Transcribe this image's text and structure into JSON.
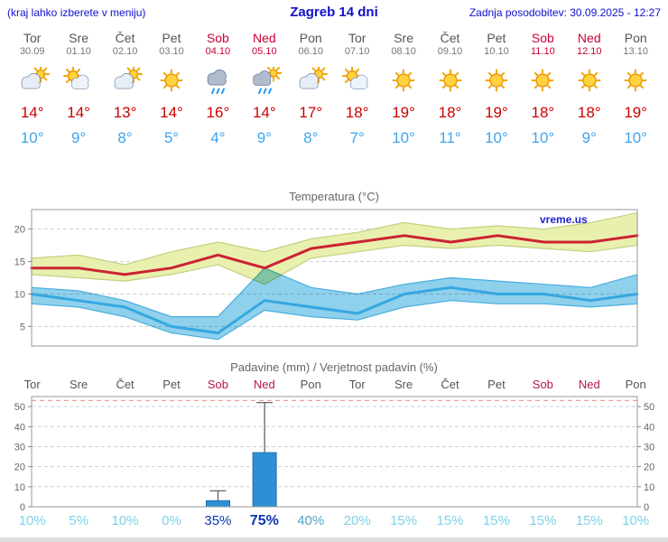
{
  "header": {
    "left": "(kraj lahko izberete v meniju)",
    "title": "Zagreb 14 dni",
    "right": "Zadnja posodobitev: 30.09.2025 - 12:27"
  },
  "watermark": "vreme.us",
  "days": [
    {
      "name": "Tor",
      "date": "30.09",
      "weekend": false,
      "icon": "cloudy-sun",
      "tmax": "14°",
      "tmin": "10°"
    },
    {
      "name": "Sre",
      "date": "01.10",
      "weekend": false,
      "icon": "partly",
      "tmax": "14°",
      "tmin": "9°"
    },
    {
      "name": "Čet",
      "date": "02.10",
      "weekend": false,
      "icon": "cloudy-sun",
      "tmax": "13°",
      "tmin": "8°"
    },
    {
      "name": "Pet",
      "date": "03.10",
      "weekend": false,
      "icon": "sun",
      "tmax": "14°",
      "tmin": "5°"
    },
    {
      "name": "Sob",
      "date": "04.10",
      "weekend": true,
      "icon": "rain",
      "tmax": "16°",
      "tmin": "4°"
    },
    {
      "name": "Ned",
      "date": "05.10",
      "weekend": true,
      "icon": "rain-sun",
      "tmax": "14°",
      "tmin": "9°"
    },
    {
      "name": "Pon",
      "date": "06.10",
      "weekend": false,
      "icon": "cloudy-sun",
      "tmax": "17°",
      "tmin": "8°"
    },
    {
      "name": "Tor",
      "date": "07.10",
      "weekend": false,
      "icon": "partly",
      "tmax": "18°",
      "tmin": "7°"
    },
    {
      "name": "Sre",
      "date": "08.10",
      "weekend": false,
      "icon": "sun",
      "tmax": "19°",
      "tmin": "10°"
    },
    {
      "name": "Čet",
      "date": "09.10",
      "weekend": false,
      "icon": "sun",
      "tmax": "18°",
      "tmin": "11°"
    },
    {
      "name": "Pet",
      "date": "10.10",
      "weekend": false,
      "icon": "sun",
      "tmax": "19°",
      "tmin": "10°"
    },
    {
      "name": "Sob",
      "date": "11.10",
      "weekend": true,
      "icon": "sun",
      "tmax": "18°",
      "tmin": "10°"
    },
    {
      "name": "Ned",
      "date": "12.10",
      "weekend": true,
      "icon": "sun",
      "tmax": "18°",
      "tmin": "9°"
    },
    {
      "name": "Pon",
      "date": "13.10",
      "weekend": false,
      "icon": "sun",
      "tmax": "19°",
      "tmin": "10°"
    }
  ],
  "chart_data": [
    {
      "type": "line",
      "title": "Temperatura (°C)",
      "categories": [
        "Tor",
        "Sre",
        "Čet",
        "Pet",
        "Sob",
        "Ned",
        "Pon",
        "Tor",
        "Sre",
        "Čet",
        "Pet",
        "Sob",
        "Ned",
        "Pon"
      ],
      "ylim": [
        2,
        23
      ],
      "yticks": [
        5,
        10,
        15,
        20
      ],
      "grid": true,
      "series": [
        {
          "name": "tmax",
          "color": "#cc2233",
          "values": [
            14,
            14,
            13,
            14,
            16,
            14,
            17,
            18,
            19,
            18,
            19,
            18,
            18,
            19
          ]
        },
        {
          "name": "tmax_range_upper",
          "color": "#e9f0ae",
          "values": [
            15.5,
            16,
            14.5,
            16.5,
            18,
            16.5,
            18.5,
            19.5,
            21,
            20,
            20.5,
            20,
            21,
            22.5
          ]
        },
        {
          "name": "tmax_range_lower",
          "color": "#e9f0ae",
          "values": [
            13,
            12.5,
            12,
            13,
            14.5,
            11.5,
            15.5,
            16.5,
            17.5,
            17,
            17.5,
            17,
            16.5,
            17.5
          ]
        },
        {
          "name": "tmin",
          "color": "#35a7e0",
          "values": [
            10,
            9,
            8,
            5,
            4,
            9,
            8,
            7,
            10,
            11,
            10,
            10,
            9,
            10
          ]
        },
        {
          "name": "tmin_range_upper",
          "color": "#8fd0ec",
          "values": [
            11,
            10.5,
            9,
            6.5,
            6.5,
            14,
            11,
            10,
            11.5,
            12.5,
            12,
            11.5,
            11,
            13
          ]
        },
        {
          "name": "tmin_range_lower",
          "color": "#8fd0ec",
          "values": [
            8.5,
            8,
            6.5,
            4,
            3,
            7.5,
            6.5,
            6,
            8,
            9,
            8.5,
            8.5,
            8,
            8.5
          ]
        }
      ]
    },
    {
      "type": "bar",
      "title": "Padavine (mm) / Verjetnost padavin (%)",
      "categories": [
        "Tor",
        "Sre",
        "Čet",
        "Pet",
        "Sob",
        "Ned",
        "Pon",
        "Tor",
        "Sre",
        "Čet",
        "Pet",
        "Sob",
        "Ned",
        "Pon"
      ],
      "values": [
        0,
        0,
        0,
        0,
        3,
        27,
        0,
        0,
        0,
        0,
        0,
        0,
        0,
        0
      ],
      "max_values": [
        0,
        0,
        0,
        0,
        8,
        52,
        0,
        0,
        0,
        0,
        0,
        0,
        0,
        0
      ],
      "ylim": [
        0,
        55
      ],
      "yticks": [
        0,
        10,
        20,
        30,
        40,
        50
      ],
      "upper_guide": 53,
      "bar_color": "#2e8fd8",
      "bar_border": "#1b6fae",
      "probabilities": [
        {
          "label": "10%",
          "level": "light",
          "bold": false
        },
        {
          "label": "5%",
          "level": "light",
          "bold": false
        },
        {
          "label": "10%",
          "level": "light",
          "bold": false
        },
        {
          "label": "0%",
          "level": "light",
          "bold": false
        },
        {
          "label": "35%",
          "level": "high",
          "bold": false
        },
        {
          "label": "75%",
          "level": "high",
          "bold": true
        },
        {
          "label": "40%",
          "level": "mid",
          "bold": false
        },
        {
          "label": "20%",
          "level": "light",
          "bold": false
        },
        {
          "label": "15%",
          "level": "light",
          "bold": false
        },
        {
          "label": "15%",
          "level": "light",
          "bold": false
        },
        {
          "label": "15%",
          "level": "light",
          "bold": false
        },
        {
          "label": "15%",
          "level": "light",
          "bold": false
        },
        {
          "label": "15%",
          "level": "light",
          "bold": false
        },
        {
          "label": "10%",
          "level": "light",
          "bold": false
        }
      ]
    }
  ]
}
